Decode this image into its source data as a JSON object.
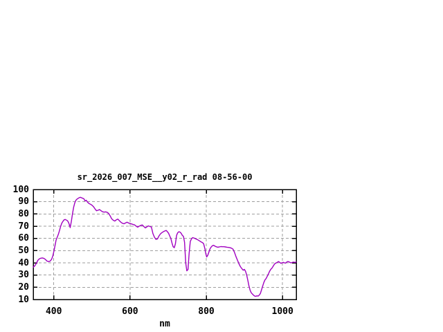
{
  "title": "sr_2026_007_MSE__y02_r_rad 08-56-00",
  "x_axis_label": "nm",
  "colors": {
    "line": "#A000C0",
    "grid": "#9e9e9e",
    "border": "#000000",
    "background": "#ffffff",
    "text": "#000000"
  },
  "chart_data": {
    "type": "line",
    "title": "sr_2026_007_MSE__y02_r_rad 08-56-00",
    "xlabel": "nm",
    "ylabel": "",
    "xlim": [
      346,
      1036
    ],
    "ylim": [
      10,
      100
    ],
    "xticks": [
      400,
      600,
      800,
      1000
    ],
    "yticks": [
      10,
      20,
      30,
      40,
      50,
      60,
      70,
      80,
      90,
      100
    ],
    "grid": true,
    "legend_position": "none",
    "series": [
      {
        "name": "sr_2026_007_MSE__y02_r_rad",
        "color": "#A000C0",
        "points": [
          [
            346,
            36.5
          ],
          [
            350,
            37.5
          ],
          [
            354,
            39.5
          ],
          [
            358,
            42
          ],
          [
            362,
            43.2
          ],
          [
            366,
            43.8
          ],
          [
            370,
            44
          ],
          [
            374,
            43.6
          ],
          [
            378,
            42.8
          ],
          [
            382,
            41.5
          ],
          [
            386,
            41
          ],
          [
            390,
            41.3
          ],
          [
            394,
            42.8
          ],
          [
            397,
            45.2
          ],
          [
            400,
            49
          ],
          [
            403,
            53.8
          ],
          [
            406,
            58.5
          ],
          [
            409,
            61
          ],
          [
            412,
            63.3
          ],
          [
            415,
            66.5
          ],
          [
            418,
            70
          ],
          [
            421,
            72.5
          ],
          [
            424,
            74
          ],
          [
            427,
            75.2
          ],
          [
            430,
            75.5
          ],
          [
            433,
            75
          ],
          [
            436,
            74.4
          ],
          [
            439,
            72.8
          ],
          [
            441,
            71
          ],
          [
            443,
            68.8
          ],
          [
            446,
            74
          ],
          [
            449,
            80
          ],
          [
            452,
            85.5
          ],
          [
            455,
            89
          ],
          [
            458,
            91.2
          ],
          [
            461,
            92.2
          ],
          [
            464,
            92.8
          ],
          [
            467,
            93.4
          ],
          [
            470,
            93.6
          ],
          [
            473,
            93.2
          ],
          [
            476,
            92.8
          ],
          [
            479,
            92.4
          ],
          [
            482,
            90.6
          ],
          [
            485,
            91.2
          ],
          [
            488,
            89.8
          ],
          [
            492,
            88.6
          ],
          [
            496,
            88
          ],
          [
            500,
            87.2
          ],
          [
            504,
            86
          ],
          [
            508,
            84.2
          ],
          [
            512,
            82.6
          ],
          [
            516,
            83
          ],
          [
            520,
            83.6
          ],
          [
            524,
            82.6
          ],
          [
            528,
            81.8
          ],
          [
            532,
            81.5
          ],
          [
            536,
            81.7
          ],
          [
            540,
            81.4
          ],
          [
            544,
            80.4
          ],
          [
            548,
            78.4
          ],
          [
            552,
            76
          ],
          [
            556,
            74.8
          ],
          [
            560,
            74.2
          ],
          [
            564,
            75.2
          ],
          [
            568,
            75.8
          ],
          [
            572,
            74.4
          ],
          [
            576,
            73.2
          ],
          [
            580,
            72.4
          ],
          [
            584,
            72
          ],
          [
            588,
            72.6
          ],
          [
            592,
            73.2
          ],
          [
            596,
            72.6
          ],
          [
            600,
            72.2
          ],
          [
            604,
            71.8
          ],
          [
            608,
            71.4
          ],
          [
            612,
            71
          ],
          [
            616,
            70
          ],
          [
            620,
            69.2
          ],
          [
            624,
            70
          ],
          [
            628,
            70.6
          ],
          [
            632,
            71
          ],
          [
            636,
            69.8
          ],
          [
            640,
            68.6
          ],
          [
            644,
            69.4
          ],
          [
            648,
            70.2
          ],
          [
            652,
            69.8
          ],
          [
            656,
            69.4
          ],
          [
            660,
            64
          ],
          [
            664,
            61
          ],
          [
            668,
            59.2
          ],
          [
            672,
            59.6
          ],
          [
            676,
            62
          ],
          [
            680,
            63.8
          ],
          [
            684,
            64.8
          ],
          [
            688,
            65.6
          ],
          [
            692,
            66.2
          ],
          [
            695,
            66.5
          ],
          [
            698,
            65.4
          ],
          [
            701,
            64.2
          ],
          [
            704,
            62
          ],
          [
            707,
            60
          ],
          [
            710,
            56.2
          ],
          [
            713,
            53.2
          ],
          [
            716,
            52.4
          ],
          [
            719,
            55.5
          ],
          [
            722,
            62.5
          ],
          [
            725,
            64.6
          ],
          [
            728,
            65.4
          ],
          [
            731,
            65.2
          ],
          [
            734,
            64.2
          ],
          [
            737,
            62.6
          ],
          [
            740,
            61.6
          ],
          [
            743,
            57
          ],
          [
            746,
            40
          ],
          [
            749,
            33.5
          ],
          [
            752,
            34.5
          ],
          [
            755,
            47.5
          ],
          [
            758,
            57.5
          ],
          [
            761,
            59.6
          ],
          [
            764,
            60.6
          ],
          [
            767,
            60.4
          ],
          [
            770,
            60
          ],
          [
            774,
            59.4
          ],
          [
            778,
            58.8
          ],
          [
            782,
            58
          ],
          [
            786,
            57.2
          ],
          [
            790,
            56.6
          ],
          [
            793,
            55.6
          ],
          [
            796,
            52
          ],
          [
            799,
            47
          ],
          [
            801,
            44.8
          ],
          [
            804,
            46.2
          ],
          [
            807,
            49
          ],
          [
            810,
            51.6
          ],
          [
            813,
            53
          ],
          [
            816,
            54
          ],
          [
            819,
            54.4
          ],
          [
            822,
            53.8
          ],
          [
            826,
            53.2
          ],
          [
            830,
            52.8
          ],
          [
            834,
            53
          ],
          [
            838,
            53.3
          ],
          [
            842,
            53.2
          ],
          [
            846,
            53.2
          ],
          [
            850,
            53
          ],
          [
            854,
            52.8
          ],
          [
            858,
            52.6
          ],
          [
            862,
            52.4
          ],
          [
            866,
            52
          ],
          [
            870,
            51.2
          ],
          [
            874,
            48.5
          ],
          [
            878,
            45
          ],
          [
            882,
            42
          ],
          [
            886,
            39
          ],
          [
            890,
            36.6
          ],
          [
            894,
            35
          ],
          [
            897,
            34
          ],
          [
            900,
            34.6
          ],
          [
            903,
            33
          ],
          [
            906,
            30
          ],
          [
            909,
            25.5
          ],
          [
            912,
            21
          ],
          [
            915,
            17.5
          ],
          [
            918,
            15.5
          ],
          [
            921,
            14.5
          ],
          [
            924,
            13.5
          ],
          [
            927,
            12.8
          ],
          [
            930,
            12.6
          ],
          [
            933,
            13
          ],
          [
            936,
            12.8
          ],
          [
            939,
            13.6
          ],
          [
            942,
            15
          ],
          [
            945,
            18
          ],
          [
            948,
            21
          ],
          [
            951,
            24
          ],
          [
            954,
            26
          ],
          [
            957,
            27.2
          ],
          [
            960,
            29
          ],
          [
            963,
            31
          ],
          [
            966,
            33
          ],
          [
            969,
            34.6
          ],
          [
            972,
            35.6
          ],
          [
            975,
            37
          ],
          [
            978,
            38.6
          ],
          [
            981,
            39.6
          ],
          [
            984,
            40
          ],
          [
            987,
            40.6
          ],
          [
            990,
            41
          ],
          [
            993,
            40.2
          ],
          [
            996,
            39.6
          ],
          [
            999,
            40
          ],
          [
            1002,
            40.4
          ],
          [
            1005,
            40
          ],
          [
            1008,
            39.8
          ],
          [
            1011,
            40.6
          ],
          [
            1014,
            41
          ],
          [
            1017,
            40.8
          ],
          [
            1020,
            40.2
          ],
          [
            1023,
            40
          ],
          [
            1026,
            40.4
          ],
          [
            1029,
            40.6
          ],
          [
            1032,
            40.4
          ],
          [
            1036,
            40.6
          ]
        ]
      }
    ]
  }
}
